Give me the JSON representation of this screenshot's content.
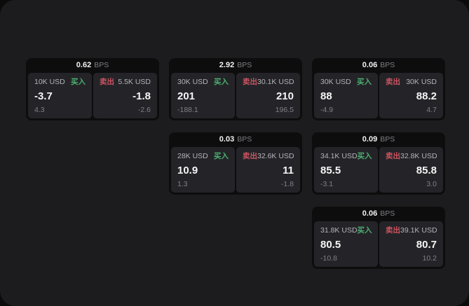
{
  "labels": {
    "buy": "买入",
    "sell": "卖出",
    "bps": "BPS"
  },
  "colors": {
    "buy": "#4caf70",
    "sell": "#cb5460"
  },
  "cards": [
    {
      "row": 1,
      "col": 1,
      "bps": "0.62",
      "buy": {
        "amount": "10K USD",
        "value": "-3.7",
        "delta": "4.3"
      },
      "sell": {
        "amount": "5.5K USD",
        "value": "-1.8",
        "delta": "-2.6"
      }
    },
    {
      "row": 1,
      "col": 2,
      "bps": "2.92",
      "buy": {
        "amount": "30K USD",
        "value": "201",
        "delta": "-188.1"
      },
      "sell": {
        "amount": "30.1K USD",
        "value": "210",
        "delta": "196.5"
      }
    },
    {
      "row": 1,
      "col": 3,
      "bps": "0.06",
      "buy": {
        "amount": "30K USD",
        "value": "88",
        "delta": "-4.9"
      },
      "sell": {
        "amount": "30K USD",
        "value": "88.2",
        "delta": "4.7"
      }
    },
    {
      "row": 2,
      "col": 2,
      "bps": "0.03",
      "buy": {
        "amount": "28K USD",
        "value": "10.9",
        "delta": "1.3"
      },
      "sell": {
        "amount": "32.6K USD",
        "value": "11",
        "delta": "-1.8"
      }
    },
    {
      "row": 2,
      "col": 3,
      "bps": "0.09",
      "buy": {
        "amount": "34.1K USD",
        "value": "85.5",
        "delta": "-3.1"
      },
      "sell": {
        "amount": "32.8K USD",
        "value": "85.8",
        "delta": "3.0"
      }
    },
    {
      "row": 3,
      "col": 3,
      "bps": "0.06",
      "buy": {
        "amount": "31.8K USD",
        "value": "80.5",
        "delta": "-10.8"
      },
      "sell": {
        "amount": "39.1K USD",
        "value": "80.7",
        "delta": "10.2"
      }
    }
  ]
}
